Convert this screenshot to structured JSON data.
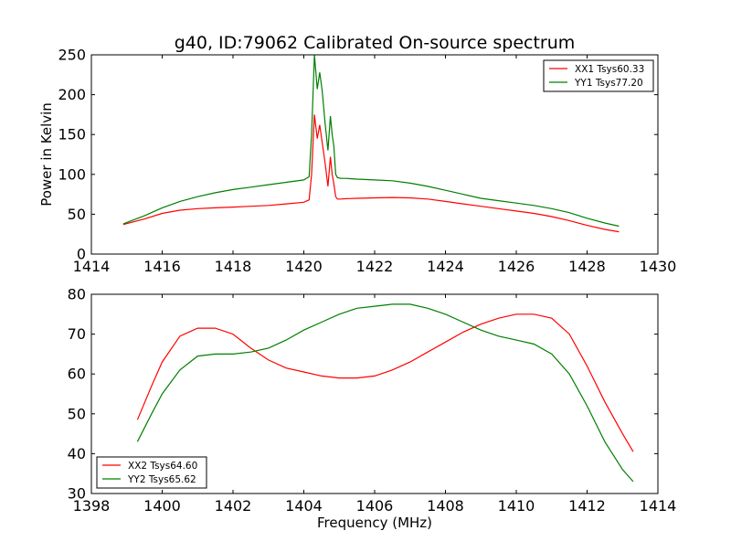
{
  "figure": {
    "title": "g40, ID:79062 Calibrated On-source spectrum",
    "xlabel": "Frequency (MHz)",
    "ylabel": "Power in Kelvin"
  },
  "colors": {
    "xx": "#ff0000",
    "yy": "#007f00"
  },
  "chart_data": [
    {
      "type": "line",
      "title": "g40, ID:79062 Calibrated On-source spectrum",
      "ylabel": "Power in Kelvin",
      "xlabel": "",
      "xlim": [
        1414,
        1430
      ],
      "ylim": [
        0,
        250
      ],
      "xticks": [
        1414,
        1416,
        1418,
        1420,
        1422,
        1424,
        1426,
        1428,
        1430
      ],
      "yticks": [
        0,
        50,
        100,
        150,
        200,
        250
      ],
      "legend_position": "top-right",
      "grid": false,
      "series": [
        {
          "name": "XX1 Tsys60.33",
          "color": "#ff0000",
          "x": [
            1414.9,
            1415.5,
            1416,
            1416.5,
            1417,
            1417.5,
            1418,
            1418.5,
            1419,
            1419.5,
            1420,
            1420.15,
            1420.22,
            1420.3,
            1420.38,
            1420.45,
            1420.52,
            1420.6,
            1420.68,
            1420.75,
            1420.8,
            1420.85,
            1420.9,
            1420.95,
            1421.05,
            1421.2,
            1421.5,
            1422,
            1422.5,
            1423,
            1423.5,
            1424,
            1424.5,
            1425,
            1425.5,
            1426,
            1426.5,
            1427,
            1427.5,
            1428,
            1428.5,
            1428.9
          ],
          "y": [
            37,
            44,
            51,
            55,
            57,
            58,
            59,
            60,
            61,
            63,
            65,
            68,
            100,
            175,
            145,
            162,
            140,
            115,
            85,
            122,
            100,
            88,
            72,
            69,
            69,
            69.5,
            70,
            70.5,
            71,
            70.5,
            69,
            66,
            63,
            60,
            57,
            54,
            51,
            47,
            42,
            36,
            31,
            28
          ]
        },
        {
          "name": "YY1 Tsys77.20",
          "color": "#007f00",
          "x": [
            1414.9,
            1415.5,
            1416,
            1416.5,
            1417,
            1417.5,
            1418,
            1418.5,
            1419,
            1419.5,
            1420,
            1420.15,
            1420.22,
            1420.3,
            1420.38,
            1420.45,
            1420.52,
            1420.6,
            1420.68,
            1420.75,
            1420.8,
            1420.85,
            1420.9,
            1420.95,
            1421.05,
            1421.2,
            1421.5,
            1422,
            1422.5,
            1423,
            1423.5,
            1424,
            1424.5,
            1425,
            1425.5,
            1426,
            1426.5,
            1427,
            1427.5,
            1428,
            1428.5,
            1428.9
          ],
          "y": [
            38,
            48,
            58,
            66,
            72,
            77,
            81,
            84,
            87,
            90,
            93,
            97,
            150,
            250,
            207,
            228,
            205,
            165,
            130,
            173,
            150,
            135,
            100,
            96,
            95,
            95,
            94,
            93,
            92,
            89,
            85,
            80,
            75,
            70,
            67,
            64,
            61,
            57,
            52,
            45,
            39,
            35
          ]
        }
      ]
    },
    {
      "type": "line",
      "title": "",
      "xlabel": "Frequency (MHz)",
      "ylabel": "",
      "xlim": [
        1398,
        1414
      ],
      "ylim": [
        30,
        80
      ],
      "xticks": [
        1398,
        1400,
        1402,
        1404,
        1406,
        1408,
        1410,
        1412,
        1414
      ],
      "yticks": [
        30,
        40,
        50,
        60,
        70,
        80
      ],
      "legend_position": "bottom-left",
      "grid": false,
      "series": [
        {
          "name": "XX2 Tsys64.60",
          "color": "#ff0000",
          "x": [
            1399.3,
            1399.7,
            1400,
            1400.5,
            1401,
            1401.5,
            1402,
            1402.5,
            1403,
            1403.5,
            1404,
            1404.5,
            1405,
            1405.5,
            1406,
            1406.5,
            1407,
            1407.5,
            1408,
            1408.5,
            1409,
            1409.5,
            1410,
            1410.5,
            1411,
            1411.5,
            1412,
            1412.5,
            1413,
            1413.3
          ],
          "y": [
            48.5,
            57,
            63,
            69.5,
            71.5,
            71.5,
            70,
            66.5,
            63.5,
            61.5,
            60.5,
            59.5,
            59,
            59,
            59.5,
            61,
            63,
            65.5,
            68,
            70.5,
            72.5,
            74,
            75,
            75,
            74,
            70,
            62,
            53,
            45,
            40.5
          ]
        },
        {
          "name": "YY2 Tsys65.62",
          "color": "#007f00",
          "x": [
            1399.3,
            1399.7,
            1400,
            1400.5,
            1401,
            1401.5,
            1402,
            1402.5,
            1403,
            1403.5,
            1404,
            1404.5,
            1405,
            1405.5,
            1406,
            1406.5,
            1407,
            1407.5,
            1408,
            1408.5,
            1409,
            1409.5,
            1410,
            1410.5,
            1411,
            1411.5,
            1412,
            1412.5,
            1413,
            1413.3
          ],
          "y": [
            43,
            50,
            55,
            61,
            64.5,
            65,
            65,
            65.5,
            66.5,
            68.5,
            71,
            73,
            75,
            76.5,
            77,
            77.5,
            77.5,
            76.5,
            75,
            73,
            71,
            69.5,
            68.5,
            67.5,
            65,
            60,
            52,
            43,
            36,
            33
          ]
        }
      ]
    }
  ]
}
